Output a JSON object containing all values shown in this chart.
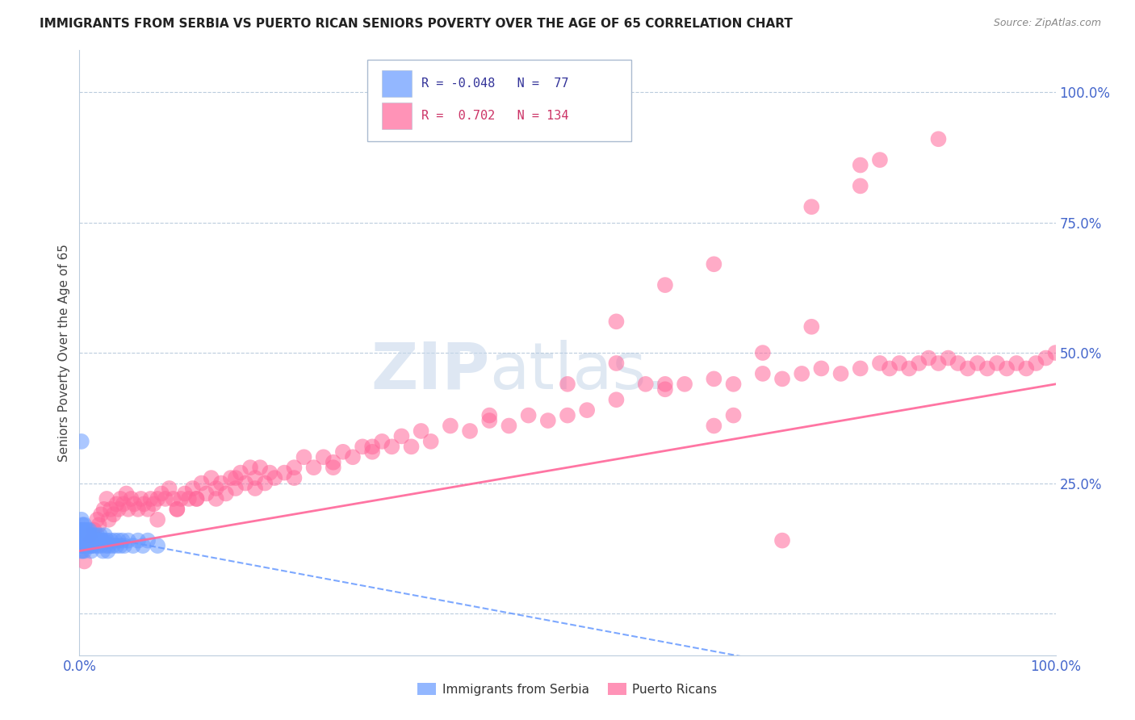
{
  "title": "IMMIGRANTS FROM SERBIA VS PUERTO RICAN SENIORS POVERTY OVER THE AGE OF 65 CORRELATION CHART",
  "source": "Source: ZipAtlas.com",
  "ylabel": "Seniors Poverty Over the Age of 65",
  "xlim": [
    0.0,
    1.0
  ],
  "ylim": [
    -0.08,
    1.08
  ],
  "x_ticks": [
    0.0,
    0.2,
    0.4,
    0.6,
    0.8,
    1.0
  ],
  "x_tick_labels": [
    "0.0%",
    "",
    "",
    "",
    "",
    "100.0%"
  ],
  "y_tick_labels_right": [
    "100.0%",
    "75.0%",
    "50.0%",
    "25.0%"
  ],
  "y_ticks_right": [
    1.0,
    0.75,
    0.5,
    0.25
  ],
  "grid_lines": [
    0.0,
    0.25,
    0.5,
    0.75,
    1.0
  ],
  "serbia_color": "#6699FF",
  "puerto_rico_color": "#FF6699",
  "serbia_R": "-0.048",
  "serbia_N": "77",
  "puerto_rico_R": "0.702",
  "puerto_rico_N": "134",
  "watermark_zip": "ZIP",
  "watermark_atlas": "atlas.",
  "serbia_regression": {
    "slope": -0.35,
    "intercept": 0.155
  },
  "pr_regression": {
    "slope": 0.32,
    "intercept": 0.12
  },
  "serbia_scatter_x": [
    0.002,
    0.002,
    0.002,
    0.003,
    0.003,
    0.003,
    0.003,
    0.004,
    0.004,
    0.004,
    0.005,
    0.005,
    0.005,
    0.006,
    0.006,
    0.007,
    0.007,
    0.008,
    0.008,
    0.009,
    0.009,
    0.01,
    0.01,
    0.011,
    0.011,
    0.012,
    0.012,
    0.013,
    0.013,
    0.014,
    0.015,
    0.016,
    0.017,
    0.018,
    0.019,
    0.02,
    0.021,
    0.022,
    0.023,
    0.024,
    0.025,
    0.026,
    0.027,
    0.028,
    0.029,
    0.03,
    0.032,
    0.034,
    0.036,
    0.038,
    0.04,
    0.042,
    0.044,
    0.046,
    0.05,
    0.055,
    0.06,
    0.065,
    0.07,
    0.08,
    0.001,
    0.001,
    0.001,
    0.002,
    0.002,
    0.003,
    0.004,
    0.004,
    0.005,
    0.006,
    0.007,
    0.008,
    0.009,
    0.01,
    0.011,
    0.012,
    0.002
  ],
  "serbia_scatter_y": [
    0.14,
    0.16,
    0.18,
    0.13,
    0.15,
    0.17,
    0.12,
    0.14,
    0.16,
    0.13,
    0.15,
    0.12,
    0.17,
    0.14,
    0.16,
    0.13,
    0.15,
    0.14,
    0.16,
    0.13,
    0.15,
    0.14,
    0.16,
    0.13,
    0.15,
    0.14,
    0.12,
    0.15,
    0.13,
    0.14,
    0.15,
    0.13,
    0.14,
    0.15,
    0.13,
    0.14,
    0.15,
    0.13,
    0.14,
    0.12,
    0.14,
    0.15,
    0.13,
    0.14,
    0.12,
    0.13,
    0.14,
    0.13,
    0.14,
    0.13,
    0.14,
    0.13,
    0.14,
    0.13,
    0.14,
    0.13,
    0.14,
    0.13,
    0.14,
    0.13,
    0.14,
    0.15,
    0.16,
    0.13,
    0.12,
    0.14,
    0.13,
    0.15,
    0.14,
    0.13,
    0.14,
    0.13,
    0.14,
    0.13,
    0.14,
    0.13,
    0.33
  ],
  "pr_scatter_x": [
    0.005,
    0.01,
    0.012,
    0.015,
    0.018,
    0.02,
    0.022,
    0.025,
    0.028,
    0.03,
    0.032,
    0.035,
    0.038,
    0.04,
    0.042,
    0.045,
    0.048,
    0.05,
    0.053,
    0.056,
    0.06,
    0.063,
    0.066,
    0.07,
    0.073,
    0.076,
    0.08,
    0.084,
    0.088,
    0.092,
    0.096,
    0.1,
    0.104,
    0.108,
    0.112,
    0.116,
    0.12,
    0.125,
    0.13,
    0.135,
    0.14,
    0.145,
    0.15,
    0.155,
    0.16,
    0.165,
    0.17,
    0.175,
    0.18,
    0.185,
    0.19,
    0.195,
    0.2,
    0.21,
    0.22,
    0.23,
    0.24,
    0.25,
    0.26,
    0.27,
    0.28,
    0.29,
    0.3,
    0.31,
    0.32,
    0.33,
    0.34,
    0.35,
    0.36,
    0.38,
    0.4,
    0.42,
    0.44,
    0.46,
    0.48,
    0.5,
    0.52,
    0.55,
    0.58,
    0.6,
    0.62,
    0.65,
    0.67,
    0.7,
    0.72,
    0.74,
    0.76,
    0.78,
    0.8,
    0.82,
    0.83,
    0.84,
    0.85,
    0.86,
    0.87,
    0.88,
    0.89,
    0.9,
    0.91,
    0.92,
    0.93,
    0.94,
    0.95,
    0.96,
    0.97,
    0.98,
    0.99,
    1.0,
    0.08,
    0.1,
    0.12,
    0.14,
    0.16,
    0.18,
    0.22,
    0.26,
    0.3,
    0.55,
    0.6,
    0.65,
    0.75,
    0.8,
    0.82,
    0.88,
    0.7,
    0.75,
    0.8,
    0.42,
    0.5,
    0.55,
    0.6,
    0.65,
    0.67,
    0.72
  ],
  "pr_scatter_y": [
    0.1,
    0.15,
    0.14,
    0.16,
    0.18,
    0.17,
    0.19,
    0.2,
    0.22,
    0.18,
    0.2,
    0.19,
    0.21,
    0.2,
    0.22,
    0.21,
    0.23,
    0.2,
    0.22,
    0.21,
    0.2,
    0.22,
    0.21,
    0.2,
    0.22,
    0.21,
    0.22,
    0.23,
    0.22,
    0.24,
    0.22,
    0.2,
    0.22,
    0.23,
    0.22,
    0.24,
    0.22,
    0.25,
    0.23,
    0.26,
    0.22,
    0.25,
    0.23,
    0.26,
    0.24,
    0.27,
    0.25,
    0.28,
    0.26,
    0.28,
    0.25,
    0.27,
    0.26,
    0.27,
    0.28,
    0.3,
    0.28,
    0.3,
    0.29,
    0.31,
    0.3,
    0.32,
    0.31,
    0.33,
    0.32,
    0.34,
    0.32,
    0.35,
    0.33,
    0.36,
    0.35,
    0.37,
    0.36,
    0.38,
    0.37,
    0.38,
    0.39,
    0.41,
    0.44,
    0.43,
    0.44,
    0.45,
    0.44,
    0.46,
    0.45,
    0.46,
    0.47,
    0.46,
    0.47,
    0.48,
    0.47,
    0.48,
    0.47,
    0.48,
    0.49,
    0.48,
    0.49,
    0.48,
    0.47,
    0.48,
    0.47,
    0.48,
    0.47,
    0.48,
    0.47,
    0.48,
    0.49,
    0.5,
    0.18,
    0.2,
    0.22,
    0.24,
    0.26,
    0.24,
    0.26,
    0.28,
    0.32,
    0.56,
    0.63,
    0.67,
    0.78,
    0.82,
    0.87,
    0.91,
    0.5,
    0.55,
    0.86,
    0.38,
    0.44,
    0.48,
    0.44,
    0.36,
    0.38,
    0.14
  ]
}
